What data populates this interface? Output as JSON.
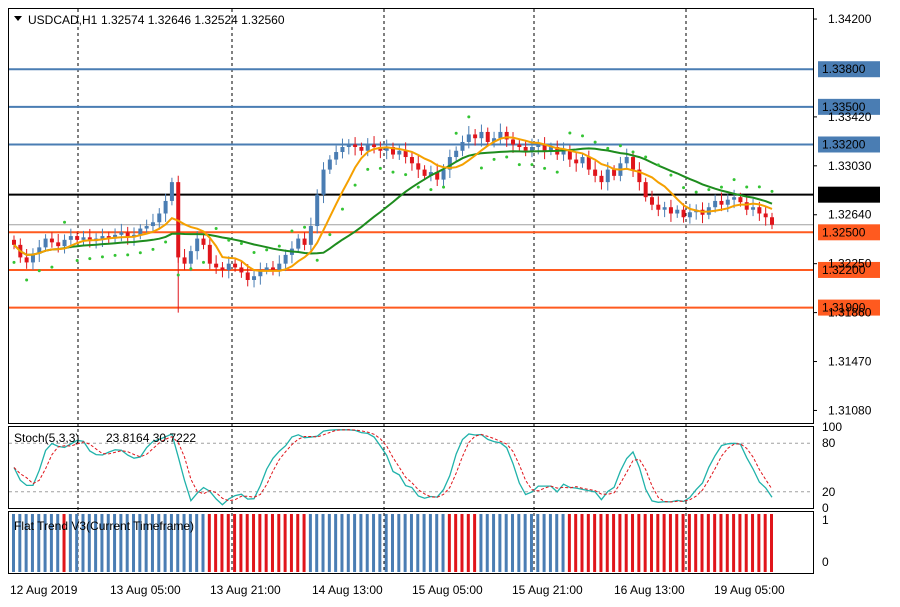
{
  "chart_data": {
    "type": "candlestick",
    "symbol": "USDCAD,H1",
    "ohlc_header": "1.32574 1.32646 1.32524 1.32560",
    "price_ylim": [
      1.3098,
      1.3428
    ],
    "price_ticks": [
      "1.34200",
      "1.33420",
      "1.33030",
      "1.32640",
      "1.32250",
      "1.31860",
      "1.31470",
      "1.31080"
    ],
    "x_tick_labels": [
      "12 Aug 2019",
      "13 Aug 05:00",
      "13 Aug 21:00",
      "14 Aug 13:00",
      "15 Aug 05:00",
      "15 Aug 21:00",
      "16 Aug 13:00",
      "19 Aug 05:00"
    ],
    "levels": [
      {
        "label": "1.33800",
        "value": 1.338,
        "color": "#4a7db3",
        "box": "#4a7db3"
      },
      {
        "label": "1.33500",
        "value": 1.335,
        "color": "#4a7db3",
        "box": "#4a7db3"
      },
      {
        "label": "1.33200",
        "value": 1.332,
        "color": "#4a7db3",
        "box": "#4a7db3"
      },
      {
        "label": "1.32800",
        "value": 1.328,
        "color": "#000000",
        "box": "#000000"
      },
      {
        "label": "1.32500",
        "value": 1.325,
        "color": "#ff5a1f",
        "box": "#ff5a1f"
      },
      {
        "label": "1.32200",
        "value": 1.322,
        "color": "#ff5a1f",
        "box": "#ff5a1f"
      },
      {
        "label": "1.31900",
        "value": 1.319,
        "color": "#ff5a1f",
        "box": "#ff5a1f"
      }
    ],
    "current_price": {
      "label": "1.32560",
      "value": 1.3256
    },
    "closes": [
      1.324,
      1.323,
      1.3226,
      1.3233,
      1.3238,
      1.3245,
      1.3242,
      1.3239,
      1.3244,
      1.3247,
      1.3244,
      1.3246,
      1.3243,
      1.3245,
      1.3247,
      1.3245,
      1.3248,
      1.325,
      1.3246,
      1.3248,
      1.3253,
      1.3255,
      1.3258,
      1.3265,
      1.3275,
      1.329,
      1.323,
      1.3225,
      1.3235,
      1.3245,
      1.324,
      1.3225,
      1.3222,
      1.322,
      1.3225,
      1.3222,
      1.3218,
      1.3212,
      1.3215,
      1.322,
      1.3222,
      1.322,
      1.3225,
      1.3232,
      1.3237,
      1.3245,
      1.324,
      1.3255,
      1.328,
      1.33,
      1.3308,
      1.3314,
      1.3318,
      1.332,
      1.3318,
      1.3315,
      1.332,
      1.3318,
      1.3315,
      1.3318,
      1.3312,
      1.3315,
      1.331,
      1.3305,
      1.33,
      1.3295,
      1.3298,
      1.3292,
      1.33,
      1.331,
      1.3315,
      1.3322,
      1.3328,
      1.3325,
      1.333,
      1.3322,
      1.3325,
      1.333,
      1.3324,
      1.332,
      1.3318,
      1.3315,
      1.3318,
      1.332,
      1.3315,
      1.3318,
      1.3312,
      1.3315,
      1.3308,
      1.3305,
      1.331,
      1.33,
      1.3295,
      1.329,
      1.33,
      1.3295,
      1.3305,
      1.331,
      1.33,
      1.329,
      1.3278,
      1.3272,
      1.3268,
      1.327,
      1.3265,
      1.3268,
      1.3262,
      1.3266,
      1.3268,
      1.3264,
      1.327,
      1.3275,
      1.3272,
      1.3276,
      1.3278,
      1.3274,
      1.3268,
      1.327,
      1.3265,
      1.3262,
      1.3256
    ],
    "oscillators": [
      {
        "name": "Stoch(5,3,3)",
        "values_label": "23.8164 30.7222",
        "ylim": [
          0,
          100
        ],
        "tick_labels": [
          "100",
          "80",
          "20",
          "0"
        ]
      },
      {
        "name": "Flat Trend V3(Current Timeframe)",
        "ylim": [
          0,
          1
        ],
        "tick_labels": [
          "1",
          "0"
        ]
      }
    ],
    "grid": true
  }
}
